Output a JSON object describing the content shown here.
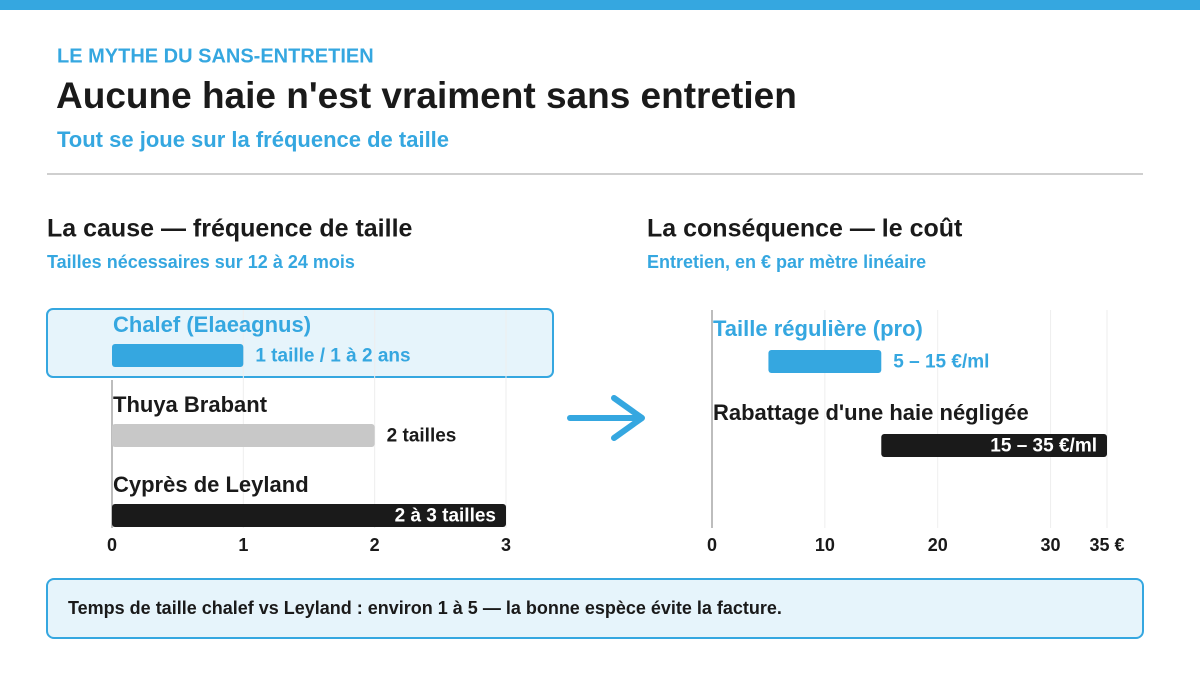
{
  "header": {
    "kicker": "LE MYTHE DU SANS-ENTRETIEN",
    "title": "Aucune haie n'est vraiment sans entretien",
    "subtitle": "Tout se joue sur la fréquence de taille"
  },
  "chart_data": [
    {
      "type": "bar",
      "title": "La cause — fréquence de taille",
      "subtitle": "Tailles nécessaires sur 12 à 24 mois",
      "categories": [
        "Chalef (Elaeagnus)",
        "Thuya Brabant",
        "Cyprès de Leyland"
      ],
      "values": [
        1,
        2,
        3
      ],
      "value_labels": [
        "1 taille / 1 à 2 ans",
        "2 tailles",
        "2 à 3 tailles"
      ],
      "colors": [
        "#35a7e0",
        "#c8c8c8",
        "#1a1a1a"
      ],
      "xlim": [
        0,
        3
      ],
      "xticks": [
        0,
        1,
        2,
        3
      ],
      "grid": true,
      "highlight": 0
    },
    {
      "type": "range_bar",
      "title": "La conséquence — le coût",
      "subtitle": "Entretien, en € par mètre linéaire",
      "categories": [
        "Taille régulière (pro)",
        "Rabattage d'une haie négligée"
      ],
      "ranges": [
        [
          5,
          15
        ],
        [
          15,
          35
        ]
      ],
      "value_labels": [
        "5 – 15 €/ml",
        "15 – 35 €/ml"
      ],
      "colors": [
        "#35a7e0",
        "#1a1a1a"
      ],
      "xlim": [
        0,
        35
      ],
      "xticks": [
        0,
        10,
        20,
        30,
        {
          "value": 35,
          "label": "35 €"
        }
      ],
      "grid": true
    }
  ],
  "note": "Temps de taille chalef vs Leyland : environ 1 à 5 — la bonne espèce évite la facture."
}
